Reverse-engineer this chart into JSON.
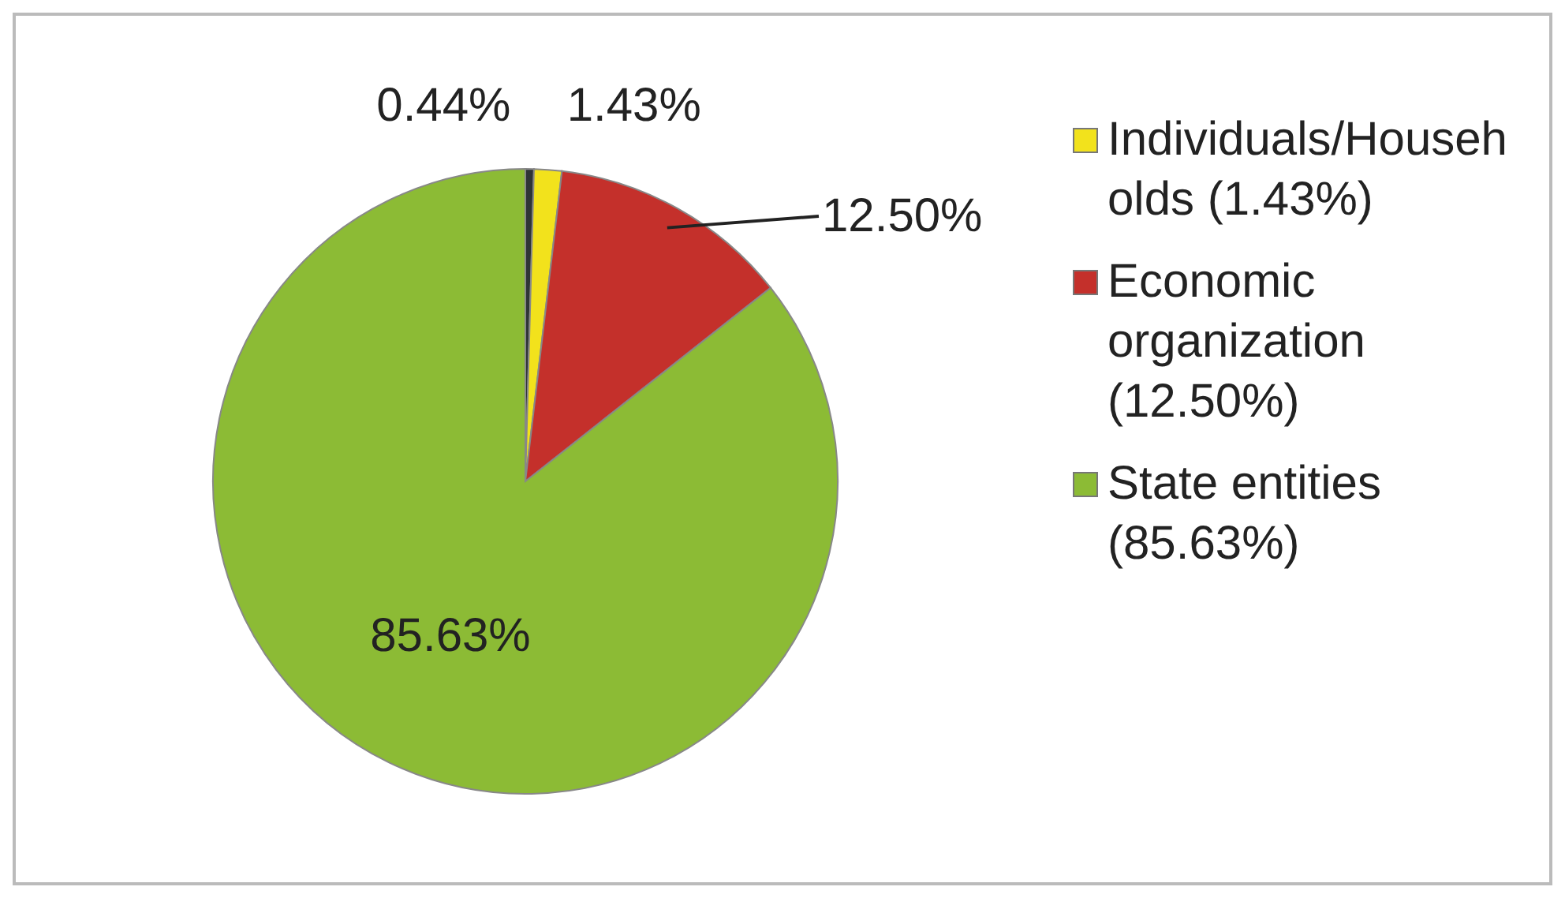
{
  "chart_data": {
    "type": "pie",
    "categories": [
      null,
      "Individuals/Households (1.43%)",
      "Economic organization (12.50%)",
      "State entities (85.63%)"
    ],
    "values": [
      0.44,
      1.43,
      12.5,
      85.63
    ],
    "colors": [
      "#2e3436",
      "#f2e21c",
      "#c4302b",
      "#8cbb35"
    ],
    "value_labels": [
      "0.44%",
      "1.43%",
      "12.50%",
      "85.63%"
    ],
    "legend": "right"
  }
}
